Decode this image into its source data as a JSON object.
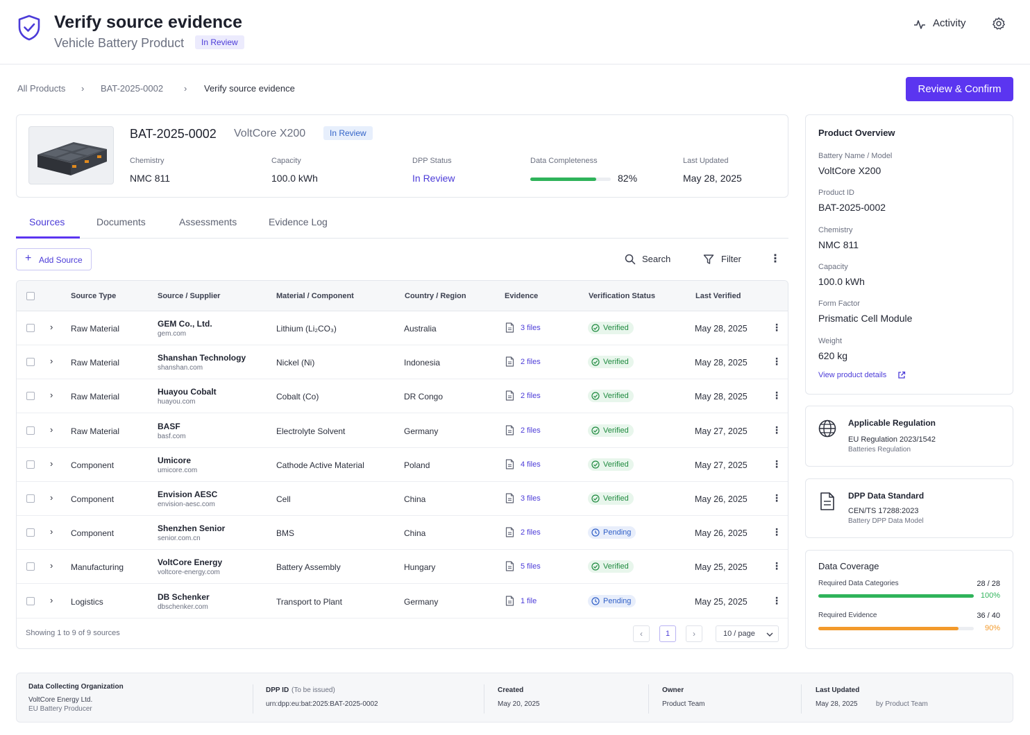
{
  "header": {
    "title": "Verify source evidence",
    "subtitle": "Vehicle Battery Product",
    "status_badge": "In Review",
    "activity_label": "Activity"
  },
  "breadcrumb": {
    "items": [
      "All Products",
      "BAT-2025-0002",
      "Verify source evidence"
    ]
  },
  "actions": {
    "review_confirm": "Review & Confirm"
  },
  "product": {
    "id": "BAT-2025-0002",
    "model": "VoltCore X200",
    "badge": "In Review",
    "chemistry_label": "Chemistry",
    "chemistry": "NMC 811",
    "capacity_label": "Capacity",
    "capacity": "100.0 kWh",
    "dpp_label": "DPP Status",
    "dpp_status": "In Review",
    "completeness_label": "Data Completeness",
    "completeness_text": "82%",
    "completeness_value": 0.82,
    "updated_label": "Last Updated",
    "updated": "May 28, 2025"
  },
  "tabs": [
    "Sources",
    "Documents",
    "Assessments",
    "Evidence Log"
  ],
  "toolbar": {
    "add_source": "Add Source",
    "search": "Search",
    "filter": "Filter"
  },
  "table": {
    "headers": [
      "Source Type",
      "Source / Supplier",
      "Material / Component",
      "Country / Region",
      "Evidence",
      "Verification Status",
      "Last Verified"
    ],
    "rows": [
      {
        "type": "Raw Material",
        "supplier": "GEM Co., Ltd.",
        "domain": "gem.com",
        "material": "Lithium (Li₂CO₃)",
        "country": "Australia",
        "evidence": "3 files",
        "status": "Verified",
        "verified": "May 28, 2025"
      },
      {
        "type": "Raw Material",
        "supplier": "Shanshan Technology",
        "domain": "shanshan.com",
        "material": "Nickel (Ni)",
        "country": "Indonesia",
        "evidence": "2 files",
        "status": "Verified",
        "verified": "May 28, 2025"
      },
      {
        "type": "Raw Material",
        "supplier": "Huayou Cobalt",
        "domain": "huayou.com",
        "material": "Cobalt (Co)",
        "country": "DR Congo",
        "evidence": "2 files",
        "status": "Verified",
        "verified": "May 28, 2025"
      },
      {
        "type": "Raw Material",
        "supplier": "BASF",
        "domain": "basf.com",
        "material": "Electrolyte Solvent",
        "country": "Germany",
        "evidence": "2 files",
        "status": "Verified",
        "verified": "May 27, 2025"
      },
      {
        "type": "Component",
        "supplier": "Umicore",
        "domain": "umicore.com",
        "material": "Cathode Active Material",
        "country": "Poland",
        "evidence": "4 files",
        "status": "Verified",
        "verified": "May 27, 2025"
      },
      {
        "type": "Component",
        "supplier": "Envision AESC",
        "domain": "envision-aesc.com",
        "material": "Cell",
        "country": "China",
        "evidence": "3 files",
        "status": "Verified",
        "verified": "May 26, 2025"
      },
      {
        "type": "Component",
        "supplier": "Shenzhen Senior",
        "domain": "senior.com.cn",
        "material": "BMS",
        "country": "China",
        "evidence": "2 files",
        "status": "Pending",
        "verified": "May 26, 2025"
      },
      {
        "type": "Manufacturing",
        "supplier": "VoltCore Energy",
        "domain": "voltcore-energy.com",
        "material": "Battery Assembly",
        "country": "Hungary",
        "evidence": "5 files",
        "status": "Verified",
        "verified": "May 25, 2025"
      },
      {
        "type": "Logistics",
        "supplier": "DB Schenker",
        "domain": "dbschenker.com",
        "material": "Transport to Plant",
        "country": "Germany",
        "evidence": "1 file",
        "status": "Pending",
        "verified": "May 25, 2025"
      }
    ],
    "showing": "Showing 1 to 9 of 9 sources",
    "page": "1",
    "per_page": "10 / page"
  },
  "overview": {
    "title": "Product Overview",
    "fields": [
      {
        "label": "Battery Name / Model",
        "value": "VoltCore X200"
      },
      {
        "label": "Product ID",
        "value": "BAT-2025-0002"
      },
      {
        "label": "Chemistry",
        "value": "NMC 811"
      },
      {
        "label": "Capacity",
        "value": "100.0 kWh"
      },
      {
        "label": "Form Factor",
        "value": "Prismatic Cell Module"
      },
      {
        "label": "Weight",
        "value": "620 kg"
      }
    ],
    "link": "View product details"
  },
  "regulation": {
    "title": "Applicable Regulation",
    "value": "EU Regulation 2023/1542",
    "sub": "Batteries Regulation"
  },
  "standard": {
    "title": "DPP Data Standard",
    "value": "CEN/TS 17288:2023",
    "sub": "Battery DPP Data Model"
  },
  "coverage": {
    "title": "Data Coverage",
    "categories_label": "Required Data Categories",
    "categories_count": "28 / 28",
    "categories_pct": "100%",
    "categories_value": 1.0,
    "evidence_label": "Required Evidence",
    "evidence_count": "36 / 40",
    "evidence_pct": "90%",
    "evidence_value": 0.9,
    "green": "#2fb35a",
    "orange": "#f39a2b"
  },
  "footer": {
    "org_title": "Data Collecting Organization",
    "org_name": "VoltCore Energy Ltd.",
    "org_role": "EU Battery Producer",
    "dpp_title": "DPP ID",
    "dpp_note": "(To be issued)",
    "dpp_value": "urn:dpp:eu:bat:2025:BAT-2025-0002",
    "created_title": "Created",
    "created_value": "May 20, 2025",
    "owner_title": "Owner",
    "owner_value": "Product Team",
    "updated_title": "Last Updated",
    "updated_value": "May 28, 2025",
    "updated_by": "by Product Team"
  }
}
